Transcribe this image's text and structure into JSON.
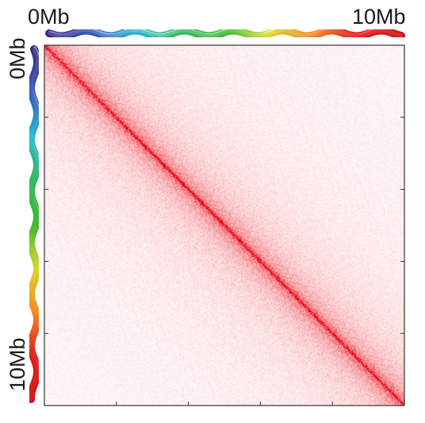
{
  "chart_data": {
    "type": "heatmap",
    "title": "",
    "xlabel": "",
    "ylabel": "",
    "x_axis": {
      "range_mb": [
        0,
        10
      ],
      "labels": [
        "0Mb",
        "10Mb"
      ]
    },
    "y_axis": {
      "range_mb": [
        0,
        10
      ],
      "labels": [
        "0Mb",
        "10Mb"
      ]
    },
    "matrix_shape": "symmetric contact map",
    "signal": "strongest along the main diagonal, decaying with distance from the diagonal",
    "colors": {
      "high": "#e8000b",
      "low": "#ffffff",
      "frame": "#333333"
    },
    "chromosome_gradient": [
      "#3b2a8a",
      "#2e57b8",
      "#1fb7d4",
      "#2fb85a",
      "#3bb82d",
      "#d9d62a",
      "#f08a1c",
      "#e11a1a",
      "#d4111a"
    ],
    "grid": false,
    "legend": "none"
  }
}
